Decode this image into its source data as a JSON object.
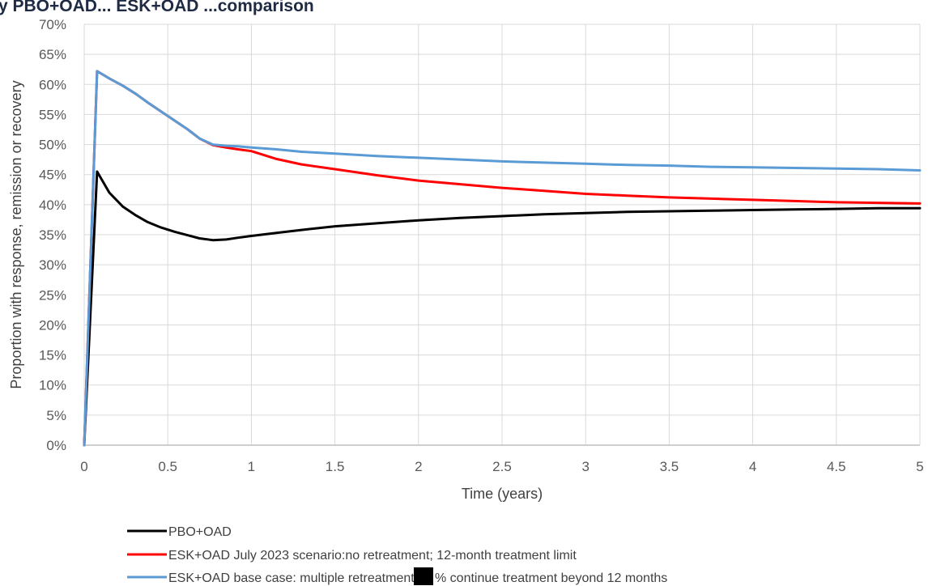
{
  "header": {
    "partial_text": "y PBO+OAD... ESK+OAD ...comparison"
  },
  "colors": {
    "grid": "#d9d9d9",
    "axis": "#bfbfbf",
    "redaction": "#000000"
  },
  "chart_data": {
    "type": "line",
    "title": "",
    "xlabel": "Time (years)",
    "ylabel": "Proportion with response, remission or recovery",
    "xlim": [
      0,
      5
    ],
    "ylim": [
      0,
      0.7
    ],
    "grid": true,
    "legend_position": "bottom-left",
    "x_ticks": [
      {
        "v": 0,
        "label": "0"
      },
      {
        "v": 0.5,
        "label": "0.5"
      },
      {
        "v": 1,
        "label": "1"
      },
      {
        "v": 1.5,
        "label": "1.5"
      },
      {
        "v": 2,
        "label": "2"
      },
      {
        "v": 2.5,
        "label": "2.5"
      },
      {
        "v": 3,
        "label": "3"
      },
      {
        "v": 3.5,
        "label": "3.5"
      },
      {
        "v": 4,
        "label": "4"
      },
      {
        "v": 4.5,
        "label": "4.5"
      },
      {
        "v": 5,
        "label": "5"
      }
    ],
    "y_ticks": [
      {
        "v": 0,
        "label": "0%"
      },
      {
        "v": 0.05,
        "label": "5%"
      },
      {
        "v": 0.1,
        "label": "10%"
      },
      {
        "v": 0.15,
        "label": "15%"
      },
      {
        "v": 0.2,
        "label": "20%"
      },
      {
        "v": 0.25,
        "label": "25%"
      },
      {
        "v": 0.3,
        "label": "30%"
      },
      {
        "v": 0.35,
        "label": "35%"
      },
      {
        "v": 0.4,
        "label": "40%"
      },
      {
        "v": 0.45,
        "label": "45%"
      },
      {
        "v": 0.5,
        "label": "50%"
      },
      {
        "v": 0.55,
        "label": "55%"
      },
      {
        "v": 0.6,
        "label": "60%"
      },
      {
        "v": 0.65,
        "label": "65%"
      },
      {
        "v": 0.7,
        "label": "70%"
      }
    ],
    "series": [
      {
        "name": "PBO+OAD",
        "color": "#000000",
        "x": [
          0,
          0.077,
          0.15,
          0.23,
          0.31,
          0.38,
          0.46,
          0.54,
          0.62,
          0.69,
          0.77,
          0.85,
          0.92,
          1.0,
          1.15,
          1.3,
          1.5,
          1.75,
          2.0,
          2.25,
          2.5,
          2.75,
          3.0,
          3.25,
          3.5,
          3.75,
          4.0,
          4.25,
          4.5,
          4.75,
          5.0
        ],
        "y": [
          0,
          0.455,
          0.42,
          0.397,
          0.382,
          0.371,
          0.362,
          0.355,
          0.349,
          0.344,
          0.341,
          0.342,
          0.345,
          0.348,
          0.353,
          0.358,
          0.364,
          0.369,
          0.374,
          0.378,
          0.381,
          0.384,
          0.386,
          0.388,
          0.389,
          0.39,
          0.391,
          0.392,
          0.393,
          0.394,
          0.394
        ]
      },
      {
        "name": "ESK+OAD July 2023 scenario:no retreatment; 12-month treatment limit",
        "color": "#ff0000",
        "x": [
          0,
          0.077,
          0.15,
          0.23,
          0.31,
          0.38,
          0.46,
          0.54,
          0.62,
          0.69,
          0.77,
          0.85,
          0.92,
          1.0,
          1.15,
          1.3,
          1.5,
          1.75,
          2.0,
          2.25,
          2.5,
          2.75,
          3.0,
          3.25,
          3.5,
          3.75,
          4.0,
          4.25,
          4.5,
          4.75,
          5.0
        ],
        "y": [
          0,
          0.622,
          0.61,
          0.598,
          0.584,
          0.57,
          0.555,
          0.54,
          0.525,
          0.51,
          0.499,
          0.495,
          0.492,
          0.489,
          0.476,
          0.467,
          0.459,
          0.449,
          0.44,
          0.434,
          0.428,
          0.423,
          0.418,
          0.415,
          0.412,
          0.41,
          0.408,
          0.406,
          0.404,
          0.403,
          0.402
        ]
      },
      {
        "name": "ESK+OAD base case: multiple retreatment; % continue treatment beyond 12 months",
        "color": "#5b9bd5",
        "x": [
          0,
          0.077,
          0.15,
          0.23,
          0.31,
          0.38,
          0.46,
          0.54,
          0.62,
          0.69,
          0.77,
          0.85,
          0.92,
          1.0,
          1.15,
          1.3,
          1.5,
          1.75,
          2.0,
          2.25,
          2.5,
          2.75,
          3.0,
          3.25,
          3.5,
          3.75,
          4.0,
          4.25,
          4.5,
          4.75,
          5.0
        ],
        "y": [
          0,
          0.622,
          0.61,
          0.598,
          0.584,
          0.57,
          0.555,
          0.54,
          0.525,
          0.51,
          0.5,
          0.498,
          0.497,
          0.495,
          0.492,
          0.488,
          0.485,
          0.481,
          0.478,
          0.475,
          0.472,
          0.47,
          0.468,
          0.466,
          0.465,
          0.463,
          0.462,
          0.461,
          0.46,
          0.459,
          0.457
        ]
      }
    ]
  },
  "legend": {
    "items": [
      {
        "label": "PBO+OAD",
        "color": "#000000"
      },
      {
        "label": "ESK+OAD July 2023 scenario:no retreatment; 12-month treatment limit",
        "color": "#ff0000"
      },
      {
        "label_before": "ESK+OAD base case: multiple retreatment;",
        "label_after": "% continue treatment beyond 12 months",
        "color": "#5b9bd5"
      }
    ]
  }
}
